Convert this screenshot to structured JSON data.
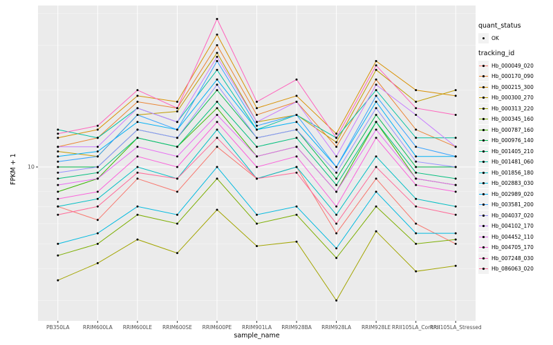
{
  "figure": {
    "bg": "#FFFFFF",
    "panel_bg": "#EBEBEB",
    "grid_major": "#FFFFFF",
    "grid_minor": "#F7F7F7",
    "tick_color": "#333333",
    "tick_label_color": "#4D4D4D"
  },
  "axes": {
    "y_label": "FPKM + 1",
    "x_label": "sample_name"
  },
  "legend": {
    "quant_status_title": "quant_status",
    "quant_status_items": [
      {
        "label": "OK"
      }
    ],
    "tracking_id_title": "tracking_id"
  },
  "chart_data": {
    "type": "line",
    "title": "",
    "xlabel": "sample_name",
    "ylabel": "FPKM + 1",
    "y_scale": "log10",
    "y_tick": 10,
    "minor_gridline_values": [
      3,
      4,
      5,
      6,
      7,
      8,
      9,
      20,
      30,
      40
    ],
    "ylim": [
      2.8,
      45
    ],
    "point_color": "#000000",
    "x_categories": [
      "PB350LA",
      "RRIM600LA",
      "RRIM600LE",
      "RRIM600SE",
      "RRIM600PE",
      "RRIM901LA",
      "RRIM928BA",
      "RRIM928LA",
      "RRIM928LE",
      "RRII105LA_Control",
      "RRII105LA_Stressed"
    ],
    "series": [
      {
        "name": "Hb_000049_020",
        "color": "#F8766D",
        "values": [
          7.0,
          6.2,
          9.0,
          8.0,
          12.0,
          9.0,
          10.0,
          5.5,
          9.0,
          6.0,
          5.0
        ]
      },
      {
        "name": "Hb_000170_090",
        "color": "#EA8331",
        "values": [
          12.0,
          13.0,
          18.0,
          17.0,
          30.0,
          16.0,
          18.0,
          12.0,
          22.0,
          14.0,
          12.0
        ]
      },
      {
        "name": "Hb_000215_300",
        "color": "#D89000",
        "values": [
          13.0,
          14.0,
          19.0,
          18.0,
          33.0,
          17.0,
          19.0,
          13.5,
          26.0,
          20.0,
          19.0
        ]
      },
      {
        "name": "Hb_000300_270",
        "color": "#C09B00",
        "values": [
          11.5,
          11.0,
          16.0,
          16.5,
          28.0,
          15.0,
          16.0,
          12.5,
          24.0,
          18.0,
          20.0
        ]
      },
      {
        "name": "Hb_000313_220",
        "color": "#A3A500",
        "values": [
          3.6,
          4.2,
          5.2,
          4.6,
          6.8,
          4.9,
          5.1,
          3.0,
          5.6,
          3.9,
          4.1
        ]
      },
      {
        "name": "Hb_000345_160",
        "color": "#7CAE00",
        "values": [
          4.5,
          5.0,
          6.5,
          6.0,
          9.0,
          6.0,
          6.5,
          4.4,
          7.0,
          5.0,
          5.2
        ]
      },
      {
        "name": "Hb_000787_160",
        "color": "#39B600",
        "values": [
          8.0,
          9.0,
          13.0,
          12.0,
          17.0,
          11.0,
          12.0,
          8.0,
          15.0,
          9.0,
          8.5
        ]
      },
      {
        "name": "Hb_000976_140",
        "color": "#00BB4E",
        "values": [
          10.0,
          10.0,
          14.0,
          13.0,
          20.0,
          13.0,
          14.0,
          9.0,
          16.0,
          10.0,
          10.0
        ]
      },
      {
        "name": "Hb_001405_210",
        "color": "#00BF7D",
        "values": [
          9.0,
          9.5,
          13.0,
          12.0,
          18.0,
          12.0,
          13.0,
          8.5,
          15.0,
          9.5,
          9.0
        ]
      },
      {
        "name": "Hb_001481_060",
        "color": "#00C1A3",
        "values": [
          14.0,
          13.0,
          17.0,
          15.0,
          24.0,
          14.0,
          16.0,
          13.0,
          20.0,
          13.0,
          13.0
        ]
      },
      {
        "name": "Hb_001856_180",
        "color": "#00BFC4",
        "values": [
          7.0,
          7.5,
          10.0,
          9.0,
          14.0,
          9.0,
          10.0,
          6.5,
          11.0,
          7.5,
          7.0
        ]
      },
      {
        "name": "Hb_002883_030",
        "color": "#00BAE0",
        "values": [
          5.0,
          5.5,
          7.0,
          6.5,
          10.0,
          6.5,
          7.0,
          4.8,
          8.0,
          5.5,
          5.5
        ]
      },
      {
        "name": "Hb_002989_020",
        "color": "#00B0F6",
        "values": [
          11.0,
          11.5,
          15.0,
          14.0,
          22.0,
          14.0,
          15.0,
          10.0,
          18.0,
          11.0,
          11.0
        ]
      },
      {
        "name": "Hb_003581_200",
        "color": "#35A2FF",
        "values": [
          10.5,
          11.0,
          16.0,
          14.0,
          26.0,
          14.5,
          16.0,
          10.0,
          19.0,
          12.0,
          11.0
        ]
      },
      {
        "name": "Hb_004037_020",
        "color": "#9590FF",
        "values": [
          9.5,
          10.0,
          14.0,
          13.0,
          21.0,
          13.0,
          14.0,
          9.5,
          17.0,
          10.5,
          10.0
        ]
      },
      {
        "name": "Hb_004102_170",
        "color": "#C77CFF",
        "values": [
          12.0,
          12.0,
          17.0,
          15.0,
          27.0,
          15.0,
          18.0,
          11.0,
          21.0,
          16.0,
          12.0
        ]
      },
      {
        "name": "Hb_004452_110",
        "color": "#E76BF3",
        "values": [
          8.5,
          9.0,
          12.0,
          11.0,
          16.0,
          11.0,
          12.0,
          8.0,
          14.0,
          9.0,
          8.5
        ]
      },
      {
        "name": "Hb_004705_170",
        "color": "#FA62DB",
        "values": [
          7.5,
          8.0,
          11.0,
          10.0,
          15.0,
          10.0,
          11.0,
          7.0,
          13.0,
          8.5,
          8.0
        ]
      },
      {
        "name": "Hb_007248_030",
        "color": "#FF62BC",
        "values": [
          13.5,
          14.5,
          20.0,
          17.0,
          38.0,
          18.0,
          22.0,
          13.0,
          25.0,
          17.0,
          16.0
        ]
      },
      {
        "name": "Hb_086063_020",
        "color": "#FF6A98",
        "values": [
          6.5,
          7.0,
          9.5,
          9.0,
          13.0,
          9.0,
          9.5,
          6.0,
          10.0,
          7.0,
          6.5
        ]
      }
    ]
  }
}
